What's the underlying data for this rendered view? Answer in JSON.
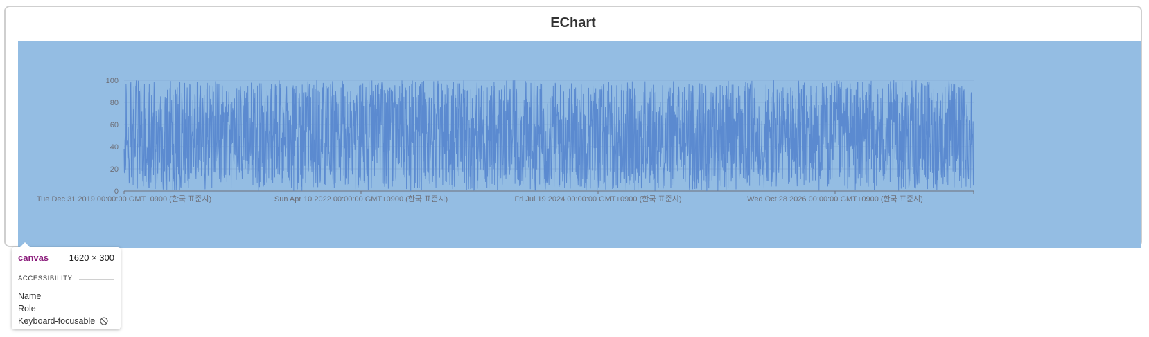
{
  "card": {
    "title": "EChart"
  },
  "chart_data": {
    "type": "line",
    "x_axis": {
      "type": "time",
      "range": [
        "2019-12-31",
        "2029-02-06"
      ],
      "tick_labels": [
        "Tue Dec 31 2019 00:00:00 GMT+0900 (한국 표준시)",
        "Sun Apr 10 2022 00:00:00 GMT+0900 (한국 표준시)",
        "Fri Jul 19 2024 00:00:00 GMT+0900 (한국 표준시)",
        "Wed Oct 28 2026 00:00:00 GMT+0900 (한국 표준시)"
      ]
    },
    "y_axis": {
      "range": [
        0,
        100
      ],
      "tick_labels": [
        "0",
        "20",
        "40",
        "60",
        "80",
        "100"
      ]
    },
    "series": [
      {
        "color": "#5b8ad0",
        "value_range": [
          0,
          100
        ],
        "description_values": "dense daily random values between 0 and 100 over roughly 3,000 days"
      }
    ],
    "grid": "horizontal",
    "background": "#94bde3"
  },
  "devtools_tooltip": {
    "tag": "canvas",
    "size": "1620 × 300",
    "section": "ACCESSIBILITY",
    "rows": {
      "name": "Name",
      "role": "Role",
      "keyboard": "Keyboard-focusable"
    },
    "keyboard_icon": "not-allowed-icon"
  }
}
